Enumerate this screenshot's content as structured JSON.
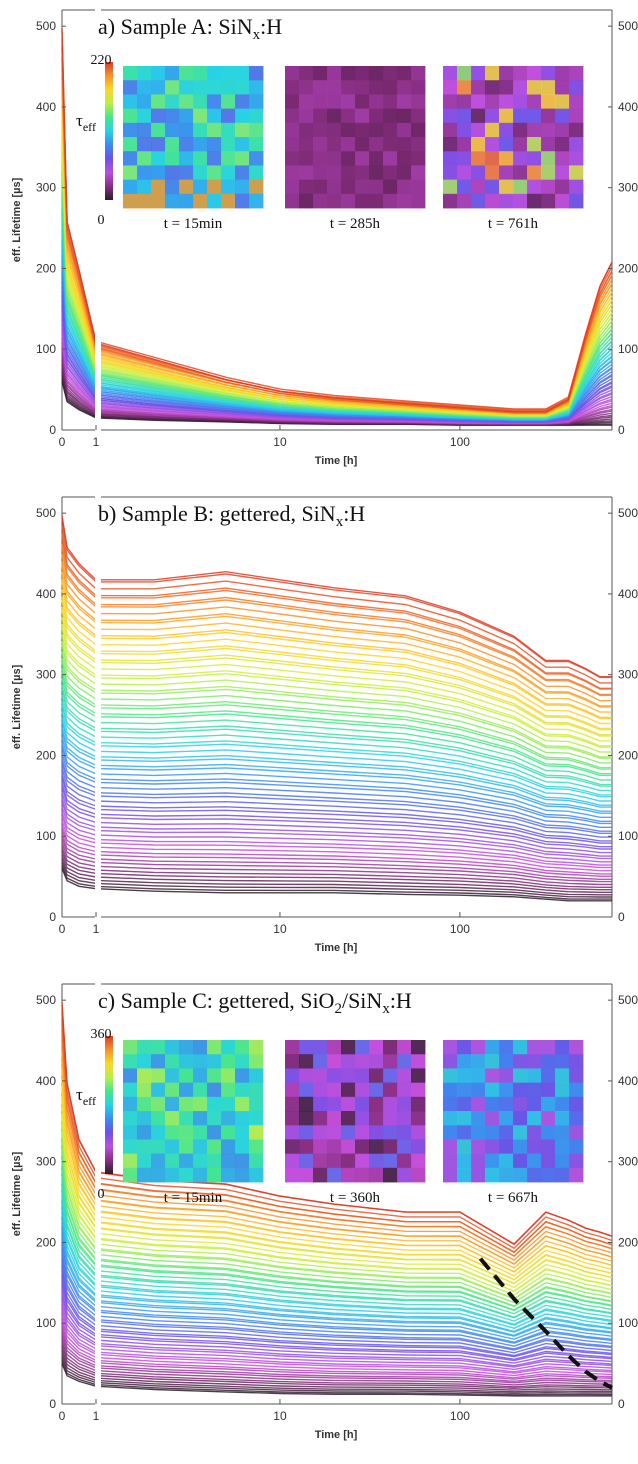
{
  "chart_data": [
    {
      "type": "line",
      "title": "a) Sample A: SiN",
      "title_sub": "x",
      "title_tail": ":H",
      "xlabel": "Time [h]",
      "ylabel": "eff. Lifetime [µs]",
      "xscale": "linear 0–1, then log 1–700",
      "xticks": [
        "0",
        "1",
        "10",
        "100"
      ],
      "yticks": [
        "0",
        "100",
        "200",
        "300",
        "400",
        "500"
      ],
      "ylim": [
        0,
        520
      ],
      "x": [
        0,
        0.15,
        0.5,
        1,
        2,
        5,
        10,
        20,
        50,
        100,
        200,
        300,
        400,
        500,
        600,
        700
      ],
      "series_envelope": {
        "upper": [
          500,
          260,
          200,
          110,
          90,
          65,
          50,
          42,
          35,
          30,
          25,
          25,
          40,
          120,
          180,
          210
        ],
        "lower": [
          60,
          35,
          25,
          15,
          12,
          10,
          8,
          7,
          7,
          6,
          6,
          6,
          6,
          6,
          6,
          6
        ]
      },
      "colorbar": {
        "label": "τ",
        "label_sub": "eff",
        "max": "220",
        "min": "0"
      },
      "insets": [
        {
          "caption": "t = 15min",
          "scheme": "mid"
        },
        {
          "caption": "t = 285h",
          "scheme": "low"
        },
        {
          "caption": "t = 761h",
          "scheme": "mixed"
        }
      ],
      "grid": false
    },
    {
      "type": "line",
      "title": "b) Sample B: gettered, SiN",
      "title_sub": "x",
      "title_tail": ":H",
      "xlabel": "Time [h]",
      "ylabel": "eff. Lifetime [µs]",
      "xticks": [
        "0",
        "1",
        "10",
        "100"
      ],
      "yticks": [
        "0",
        "100",
        "200",
        "300",
        "400",
        "500"
      ],
      "ylim": [
        0,
        520
      ],
      "x": [
        0,
        0.15,
        0.5,
        1,
        2,
        5,
        10,
        20,
        50,
        100,
        200,
        300,
        400,
        500,
        600,
        700
      ],
      "series_envelope": {
        "upper": [
          500,
          460,
          440,
          420,
          420,
          430,
          420,
          410,
          400,
          380,
          350,
          320,
          320,
          310,
          300,
          300
        ],
        "lower": [
          60,
          45,
          38,
          35,
          32,
          30,
          30,
          30,
          28,
          27,
          25,
          22,
          20,
          20,
          20,
          20
        ]
      },
      "grid": false
    },
    {
      "type": "line",
      "title": "c) Sample C: gettered, SiO",
      "title_sub": "2",
      "title_mid": "/SiN",
      "title_sub2": "x",
      "title_tail": ":H",
      "xlabel": "Time [h]",
      "ylabel": "eff. Lifetime [µs]",
      "xticks": [
        "0",
        "1",
        "10",
        "100"
      ],
      "yticks": [
        "0",
        "100",
        "200",
        "300",
        "400",
        "500"
      ],
      "ylim": [
        0,
        520
      ],
      "x": [
        0,
        0.15,
        0.5,
        1,
        2,
        5,
        10,
        20,
        50,
        100,
        200,
        300,
        400,
        500,
        600,
        700
      ],
      "series_envelope": {
        "upper": [
          500,
          400,
          330,
          290,
          280,
          275,
          260,
          250,
          240,
          240,
          200,
          240,
          230,
          220,
          215,
          210
        ],
        "lower": [
          50,
          35,
          28,
          22,
          18,
          15,
          13,
          12,
          12,
          11,
          10,
          10,
          10,
          10,
          10,
          10
        ]
      },
      "fit_line": {
        "style": "dashed",
        "x": [
          130,
          200,
          300,
          400,
          500,
          600,
          700
        ],
        "y": [
          180,
          130,
          90,
          60,
          40,
          28,
          20
        ]
      },
      "colorbar": {
        "label": "τ",
        "label_sub": "eff",
        "max": "360",
        "min": "0"
      },
      "insets": [
        {
          "caption": "t = 15min",
          "scheme": "high"
        },
        {
          "caption": "t = 360h",
          "scheme": "low2"
        },
        {
          "caption": "t = 667h",
          "scheme": "mid2"
        }
      ],
      "grid": false
    }
  ]
}
